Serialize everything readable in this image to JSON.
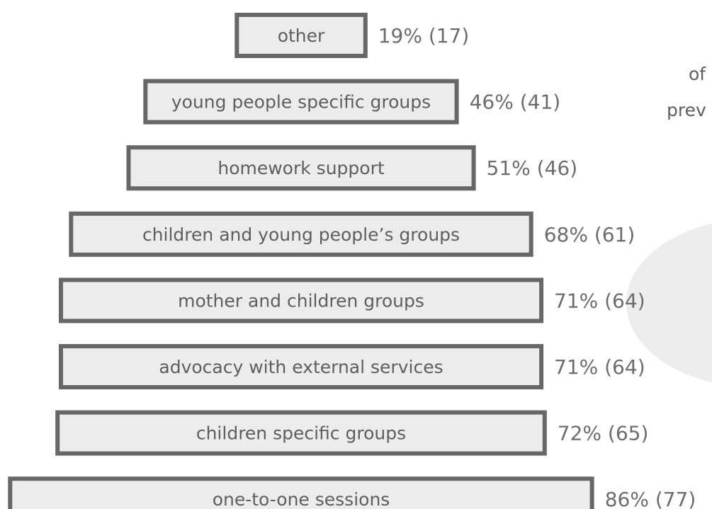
{
  "chart_data": {
    "type": "bar",
    "orientation": "horizontal",
    "categories": [
      "other",
      "young people specific groups",
      "homework support",
      "children and young people’s groups",
      "mother and children groups",
      "advocacy with external services",
      "children specific groups",
      "one-to-one sessions"
    ],
    "values": [
      19,
      46,
      51,
      68,
      71,
      71,
      72,
      86
    ],
    "counts": [
      17,
      41,
      46,
      61,
      64,
      64,
      65,
      77
    ],
    "value_labels": [
      "19% (17)",
      "46% (41)",
      "51% (46)",
      "68% (61)",
      "71% (64)",
      "71% (64)",
      "72% (65)",
      "86% (77)"
    ],
    "title": "",
    "xlabel": "",
    "ylabel": "",
    "xlim": [
      0,
      100
    ],
    "grid": false,
    "legend": "none",
    "colors": {
      "bar_fill": "#ececec",
      "bar_stroke": "#676767",
      "label_text": "#5e5e5e",
      "value_text": "#6d6d6d",
      "bubble": "#ededed"
    }
  },
  "side_text": [
    "of",
    "prev"
  ]
}
